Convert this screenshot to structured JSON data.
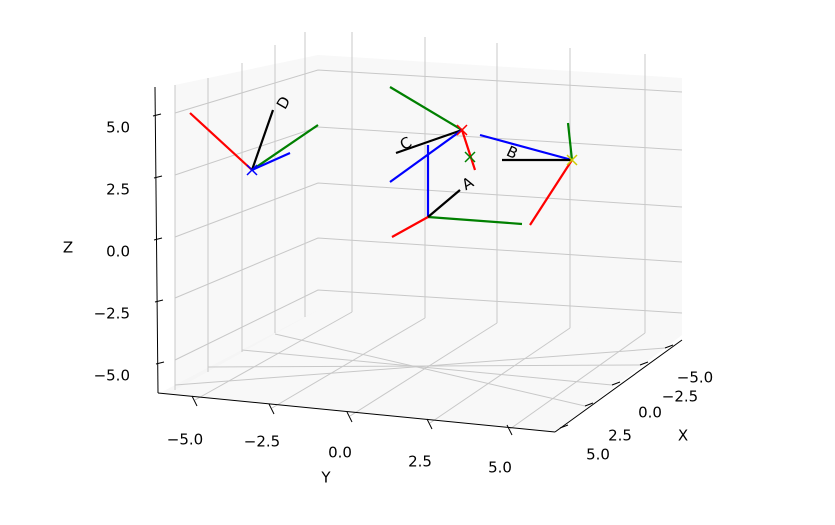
{
  "chart_data": {
    "type": "frames3d",
    "xlabel": "X",
    "ylabel": "Y",
    "zlabel": "Z",
    "xticks": [
      {
        "value": -5,
        "label": "−5.0"
      },
      {
        "value": -2.5,
        "label": "−2.5"
      },
      {
        "value": 0,
        "label": "0.0"
      },
      2.5,
      {
        "value": 5,
        "label": "5.0"
      }
    ],
    "yticks": [
      {
        "value": -5,
        "label": "−5.0"
      },
      {
        "value": -2.5,
        "label": "−2.5"
      },
      {
        "value": 0,
        "label": "0.0"
      },
      2.5,
      {
        "value": 5,
        "label": "5.0"
      }
    ],
    "zticks": [
      {
        "value": 5,
        "label": "5.0"
      },
      2.5,
      {
        "value": 0,
        "label": "0.0"
      },
      {
        "value": -2.5,
        "label": "−2.5"
      },
      {
        "value": -5,
        "label": "−5.0"
      }
    ],
    "frames": [
      "D",
      "C",
      "A",
      "B"
    ],
    "grid": true
  }
}
